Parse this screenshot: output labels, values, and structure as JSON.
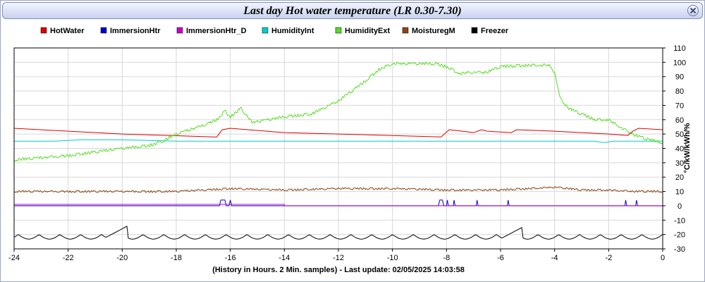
{
  "window": {
    "title": "Last day Hot water temperature (LR 0.30-7.30)"
  },
  "chart_data": {
    "type": "line",
    "xlabel": "(History in Hours. 2 Min. samples) - Last update: 02/05/2025 14:03:58",
    "ylabel": "°C/kW/kWh/%",
    "xlim": [
      -24,
      0
    ],
    "ylim": [
      -30,
      110
    ],
    "x_ticks": [
      -24,
      -22,
      -20,
      -18,
      -16,
      -14,
      -12,
      -10,
      -8,
      -6,
      -4,
      -2,
      0
    ],
    "y_ticks": [
      -30,
      -20,
      -10,
      0,
      10,
      20,
      30,
      40,
      50,
      60,
      70,
      80,
      90,
      100,
      110
    ],
    "grid": true,
    "legend_position": "top",
    "series": [
      {
        "name": "HotWater",
        "color": "#dd0000",
        "points": [
          [
            -24,
            54
          ],
          [
            -20,
            50
          ],
          [
            -16.6,
            48
          ],
          [
            -16.5,
            48
          ],
          [
            -16.3,
            53
          ],
          [
            -16.0,
            54
          ],
          [
            -14,
            51
          ],
          [
            -12,
            50
          ],
          [
            -10,
            49
          ],
          [
            -8.2,
            48
          ],
          [
            -7.9,
            53
          ],
          [
            -7.4,
            52
          ],
          [
            -7.0,
            51
          ],
          [
            -6.7,
            53
          ],
          [
            -6.5,
            52
          ],
          [
            -5.6,
            51
          ],
          [
            -5.4,
            53
          ],
          [
            -4.0,
            52
          ],
          [
            -2.0,
            50
          ],
          [
            -1.3,
            49
          ],
          [
            -1.1,
            52
          ],
          [
            -0.9,
            54
          ],
          [
            0,
            53
          ]
        ]
      },
      {
        "name": "ImmersionHtr",
        "color": "#0000cc",
        "points": [
          [
            -24,
            0
          ],
          [
            -16.4,
            0
          ],
          [
            -16.35,
            4
          ],
          [
            -16.2,
            4
          ],
          [
            -16.15,
            0
          ],
          [
            -16.05,
            0
          ],
          [
            -16.0,
            4
          ],
          [
            -15.95,
            0
          ],
          [
            -8.3,
            0
          ],
          [
            -8.25,
            4
          ],
          [
            -8.15,
            4
          ],
          [
            -8.1,
            0
          ],
          [
            -8.0,
            0
          ],
          [
            -7.97,
            4
          ],
          [
            -7.93,
            0
          ],
          [
            -7.75,
            0
          ],
          [
            -7.72,
            4
          ],
          [
            -7.68,
            0
          ],
          [
            -6.9,
            0
          ],
          [
            -6.87,
            4
          ],
          [
            -6.83,
            0
          ],
          [
            -5.75,
            0
          ],
          [
            -5.72,
            4
          ],
          [
            -5.68,
            0
          ],
          [
            -1.4,
            0
          ],
          [
            -1.37,
            4
          ],
          [
            -1.33,
            0
          ],
          [
            -1.0,
            0
          ],
          [
            -0.97,
            4
          ],
          [
            -0.93,
            0
          ],
          [
            0,
            0
          ]
        ]
      },
      {
        "name": "ImmersionHtr_D",
        "color": "#cc00cc",
        "points": [
          [
            -24,
            1
          ],
          [
            -14.0,
            1
          ],
          [
            -14.0,
            0
          ],
          [
            0,
            0
          ]
        ]
      },
      {
        "name": "HumidityInt",
        "color": "#00cccc",
        "points": [
          [
            -24,
            45
          ],
          [
            -22.5,
            45
          ],
          [
            -21.5,
            46
          ],
          [
            -20,
            46
          ],
          [
            -18,
            45
          ],
          [
            -16,
            45
          ],
          [
            -12,
            45
          ],
          [
            -8,
            45
          ],
          [
            -4,
            45
          ],
          [
            -2.5,
            45
          ],
          [
            -2.2,
            44
          ],
          [
            -1.8,
            45
          ],
          [
            0,
            45
          ]
        ]
      },
      {
        "name": "HumidityExt",
        "color": "#55dd22",
        "points": [
          [
            -24,
            32
          ],
          [
            -22,
            35
          ],
          [
            -20,
            40
          ],
          [
            -19,
            42
          ],
          [
            -18.5,
            45
          ],
          [
            -18,
            50
          ],
          [
            -17,
            56
          ],
          [
            -16.5,
            60
          ],
          [
            -16.2,
            66
          ],
          [
            -16,
            62
          ],
          [
            -15.6,
            68
          ],
          [
            -15.2,
            58
          ],
          [
            -14,
            62
          ],
          [
            -13,
            64
          ],
          [
            -12,
            73
          ],
          [
            -11.5,
            80
          ],
          [
            -11,
            87
          ],
          [
            -10.5,
            95
          ],
          [
            -10.0,
            99
          ],
          [
            -9,
            99
          ],
          [
            -8.4,
            99
          ],
          [
            -8.0,
            97
          ],
          [
            -7.5,
            92
          ],
          [
            -7.2,
            93
          ],
          [
            -6.5,
            93
          ],
          [
            -6.0,
            97
          ],
          [
            -5.0,
            98
          ],
          [
            -4.2,
            98
          ],
          [
            -4.0,
            93
          ],
          [
            -3.8,
            75
          ],
          [
            -3.5,
            68
          ],
          [
            -3.0,
            64
          ],
          [
            -2.5,
            60
          ],
          [
            -2.0,
            60
          ],
          [
            -1.5,
            54
          ],
          [
            -1.0,
            49
          ],
          [
            -0.5,
            46
          ],
          [
            0,
            44
          ]
        ]
      },
      {
        "name": "MoisturegM",
        "color": "#8b4513",
        "points": [
          [
            -24,
            10
          ],
          [
            -20,
            10
          ],
          [
            -18,
            10
          ],
          [
            -16,
            12
          ],
          [
            -14,
            11
          ],
          [
            -12,
            12
          ],
          [
            -10,
            12
          ],
          [
            -8,
            11
          ],
          [
            -6,
            11
          ],
          [
            -4,
            13
          ],
          [
            -3,
            11
          ],
          [
            -2,
            11
          ],
          [
            -1,
            10
          ],
          [
            0,
            10
          ]
        ]
      },
      {
        "name": "Freezer",
        "color": "#000000",
        "points": []
      }
    ]
  }
}
